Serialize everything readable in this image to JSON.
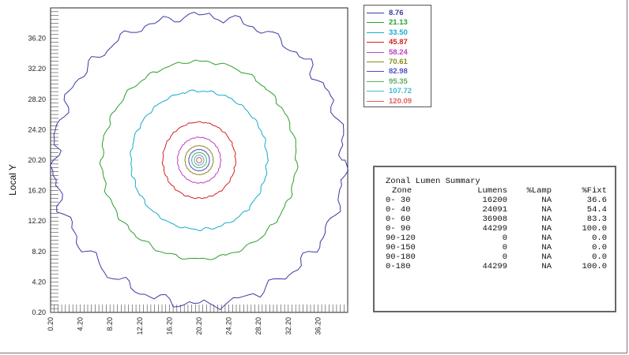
{
  "chart_data": {
    "type": "contour",
    "ylabel": "Local Y",
    "xlabel": "",
    "xlim": [
      0.2,
      40.2
    ],
    "ylim": [
      0.2,
      40.2
    ],
    "x_ticks": [
      "0.20",
      "4.20",
      "8.20",
      "12.20",
      "16.20",
      "20.20",
      "24.20",
      "28.20",
      "32.20",
      "36.20"
    ],
    "y_ticks": [
      "0.20",
      "4.20",
      "8.20",
      "12.20",
      "16.20",
      "20.20",
      "24.20",
      "28.20",
      "32.20",
      "36.20"
    ],
    "center": [
      20.2,
      20.2
    ],
    "levels": [
      {
        "value": "8.76",
        "color": "#3a3aa8",
        "radius_x": 19.5,
        "radius_y": 19.0
      },
      {
        "value": "21.13",
        "color": "#2aa02a",
        "radius_x": 13.1,
        "radius_y": 13.0
      },
      {
        "value": "33.50",
        "color": "#1aa9cf",
        "radius_x": 9.2,
        "radius_y": 9.1
      },
      {
        "value": "45.87",
        "color": "#d42020",
        "radius_x": 4.9,
        "radius_y": 5.0
      },
      {
        "value": "58.24",
        "color": "#c040c0",
        "radius_x": 2.9,
        "radius_y": 3.0
      },
      {
        "value": "70.61",
        "color": "#8a8a20",
        "radius_x": 1.9,
        "radius_y": 1.9
      },
      {
        "value": "82.98",
        "color": "#5050c8",
        "radius_x": 1.4,
        "radius_y": 1.4
      },
      {
        "value": "95.35",
        "color": "#60b060",
        "radius_x": 1.0,
        "radius_y": 1.0
      },
      {
        "value": "107.72",
        "color": "#40b8d8",
        "radius_x": 0.65,
        "radius_y": 0.65
      },
      {
        "value": "120.09",
        "color": "#e06060",
        "radius_x": 0.35,
        "radius_y": 0.35
      }
    ]
  },
  "summary": {
    "title": "Zonal Lumen Summary",
    "columns": [
      "Zone",
      "Lumens",
      "%Lamp",
      "%Fixt"
    ],
    "rows": [
      [
        "0- 30",
        "16200",
        "NA",
        "36.6"
      ],
      [
        "0- 40",
        "24091",
        "NA",
        "54.4"
      ],
      [
        "0- 60",
        "36908",
        "NA",
        "83.3"
      ],
      [
        "0- 90",
        "44299",
        "NA",
        "100.0"
      ],
      [
        "90-120",
        "0",
        "NA",
        "0.0"
      ],
      [
        "90-150",
        "0",
        "NA",
        "0.0"
      ],
      [
        "90-180",
        "0",
        "NA",
        "0.0"
      ],
      [
        "0-180",
        "44299",
        "NA",
        "100.0"
      ]
    ]
  }
}
